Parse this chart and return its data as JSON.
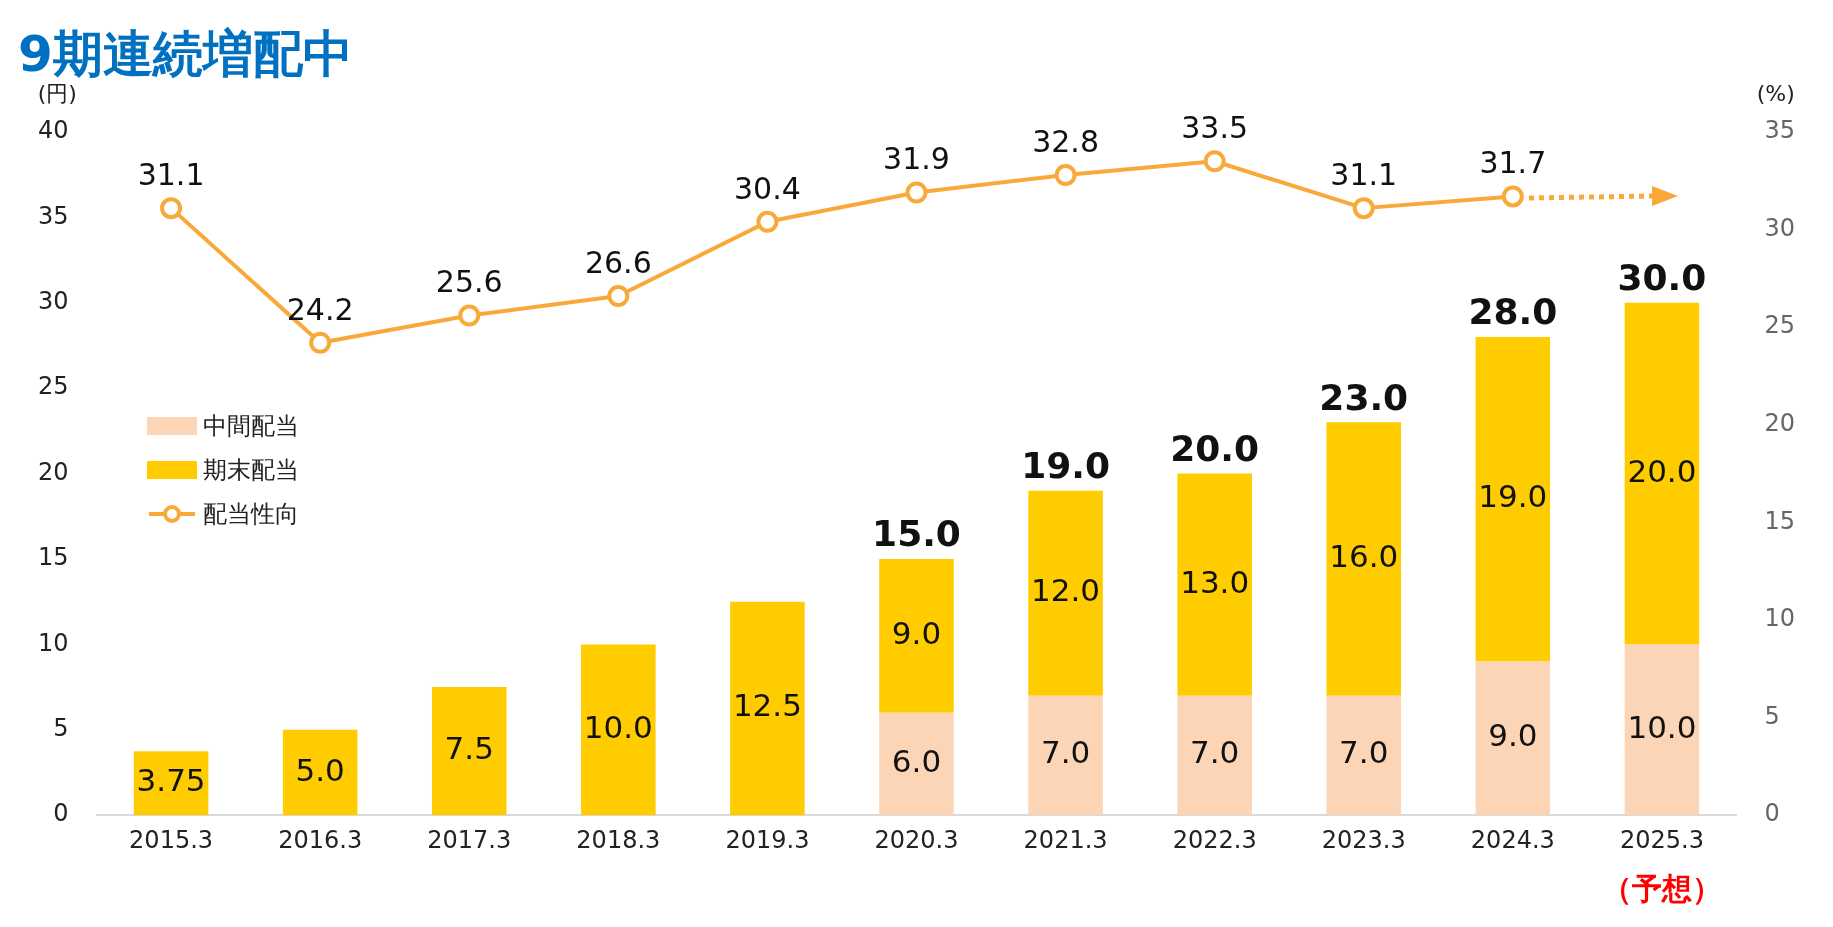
{
  "chart_data": {
    "type": "bar",
    "title": "9期連続増配中",
    "ylabel": "(円)",
    "y2label": "(%)",
    "categories": [
      "2015.3",
      "2016.3",
      "2017.3",
      "2018.3",
      "2019.3",
      "2020.3",
      "2021.3",
      "2022.3",
      "2023.3",
      "2024.3",
      "2025.3"
    ],
    "series": [
      {
        "name": "中間配当",
        "color": "#fbd5b5",
        "values": [
          null,
          null,
          null,
          null,
          null,
          6,
          7,
          7,
          7,
          9,
          10
        ],
        "value_labels": [
          null,
          null,
          null,
          null,
          null,
          "6.0",
          "7.0",
          "7.0",
          "7.0",
          "9.0",
          "10.0"
        ]
      },
      {
        "name": "期末配当",
        "color": "#ffcc00",
        "values": [
          3.75,
          5,
          7.5,
          10,
          12.5,
          9,
          12,
          13,
          16,
          19,
          20
        ],
        "value_labels": [
          "3.75",
          "5.0",
          "7.5",
          "10.0",
          "12.5",
          "9.0",
          "12.0",
          "13.0",
          "16.0",
          "19.0",
          "20.0"
        ]
      },
      {
        "name": "配当性向",
        "type": "line",
        "axis": "y2",
        "color": "#f9a93a",
        "marker": "circle",
        "values": [
          31.1,
          24.2,
          25.6,
          26.6,
          30.4,
          31.9,
          32.8,
          33.5,
          31.1,
          31.7,
          null
        ],
        "value_labels": [
          "31.1",
          "24.2",
          "25.6",
          "26.6",
          "30.4",
          "31.9",
          "32.8",
          "33.5",
          "31.1",
          "31.7",
          null
        ]
      }
    ],
    "stacked": true,
    "totals": [
      null,
      null,
      null,
      null,
      null,
      "15.0",
      "19.0",
      "20.0",
      "23.0",
      "28.0",
      "30.0"
    ],
    "ylim": [
      0,
      40
    ],
    "yticks": [
      0,
      5,
      10,
      15,
      20,
      25,
      30,
      35,
      40
    ],
    "y2lim": [
      0,
      35
    ],
    "y2ticks": [
      0,
      5,
      10,
      15,
      20,
      25,
      30,
      35
    ],
    "grid": false,
    "legend": "left",
    "annotations": [
      "（予想）"
    ]
  }
}
